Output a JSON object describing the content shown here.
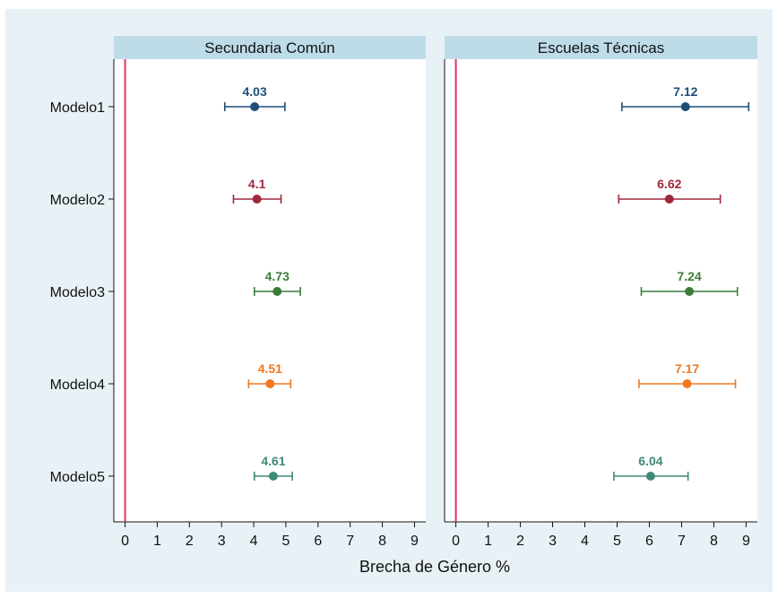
{
  "chart_data": {
    "type": "scatter",
    "subtype": "coefficient-plot-with-confidence-intervals",
    "xlabel": "Brecha de Género %",
    "xlim": [
      -0.35,
      9.35
    ],
    "xticks": [
      0,
      1,
      2,
      3,
      4,
      5,
      6,
      7,
      8,
      9
    ],
    "categories": [
      "Modelo1",
      "Modelo2",
      "Modelo3",
      "Modelo4",
      "Modelo5"
    ],
    "reference_line_x": 0,
    "grid": false,
    "colors": {
      "Modelo1": "#1f4e79",
      "Modelo2": "#a0283c",
      "Modelo3": "#3a7d3a",
      "Modelo4": "#f07820",
      "Modelo5": "#3d8a78",
      "reference_line": "#e0365a",
      "panel_header": "#bddce8",
      "outer_background": "#e8f1f6"
    },
    "panels": [
      {
        "title": "Secundaria Común",
        "points": [
          {
            "model": "Modelo1",
            "value": 4.03,
            "label": "4.03",
            "ci": [
              3.1,
              4.97
            ]
          },
          {
            "model": "Modelo2",
            "value": 4.1,
            "label": "4.1",
            "ci": [
              3.37,
              4.85
            ]
          },
          {
            "model": "Modelo3",
            "value": 4.73,
            "label": "4.73",
            "ci": [
              4.02,
              5.45
            ]
          },
          {
            "model": "Modelo4",
            "value": 4.51,
            "label": "4.51",
            "ci": [
              3.84,
              5.15
            ]
          },
          {
            "model": "Modelo5",
            "value": 4.61,
            "label": "4.61",
            "ci": [
              4.02,
              5.2
            ]
          }
        ]
      },
      {
        "title": "Escuelas Técnicas",
        "points": [
          {
            "model": "Modelo1",
            "value": 7.12,
            "label": "7.12",
            "ci": [
              5.15,
              9.08
            ]
          },
          {
            "model": "Modelo2",
            "value": 6.62,
            "label": "6.62",
            "ci": [
              5.05,
              8.2
            ]
          },
          {
            "model": "Modelo3",
            "value": 7.24,
            "label": "7.24",
            "ci": [
              5.75,
              8.73
            ]
          },
          {
            "model": "Modelo4",
            "value": 7.17,
            "label": "7.17",
            "ci": [
              5.68,
              8.67
            ]
          },
          {
            "model": "Modelo5",
            "value": 6.04,
            "label": "6.04",
            "ci": [
              4.9,
              7.2
            ]
          }
        ]
      }
    ]
  }
}
